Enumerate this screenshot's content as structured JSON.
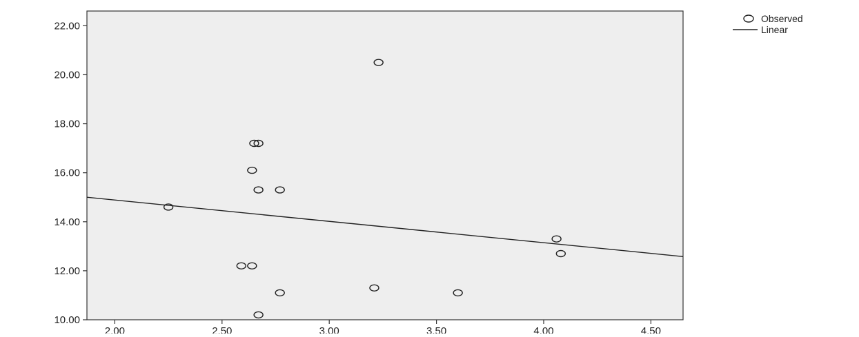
{
  "chart_data": {
    "type": "scatter",
    "title": "",
    "xlabel": "",
    "ylabel": "",
    "xlim": [
      1.87,
      4.65
    ],
    "ylim": [
      10.0,
      22.6
    ],
    "x_ticks": [
      2.0,
      2.5,
      3.0,
      3.5,
      4.0,
      4.5
    ],
    "x_tick_labels": [
      "2.00",
      "2.50",
      "3.00",
      "3.50",
      "4.00",
      "4.50"
    ],
    "y_ticks": [
      10.0,
      12.0,
      14.0,
      16.0,
      18.0,
      20.0,
      22.0
    ],
    "y_tick_labels": [
      "10.00",
      "12.00",
      "14.00",
      "16.00",
      "18.00",
      "20.00",
      "22.00"
    ],
    "grid": false,
    "plot_background": "#eeeeee",
    "legend_position": "top-right",
    "series": [
      {
        "name": "Observed",
        "kind": "points",
        "marker": "open-circle",
        "x": [
          2.25,
          2.59,
          2.64,
          2.64,
          2.65,
          2.67,
          2.67,
          2.67,
          2.77,
          2.77,
          3.21,
          3.23,
          3.6,
          4.06,
          4.08
        ],
        "y": [
          14.6,
          12.2,
          12.2,
          16.1,
          17.2,
          17.2,
          15.3,
          10.2,
          15.3,
          11.1,
          11.3,
          20.5,
          11.1,
          13.3,
          12.7
        ]
      },
      {
        "name": "Linear",
        "kind": "line",
        "x": [
          1.87,
          4.65
        ],
        "y": [
          15.0,
          12.58
        ]
      }
    ]
  }
}
